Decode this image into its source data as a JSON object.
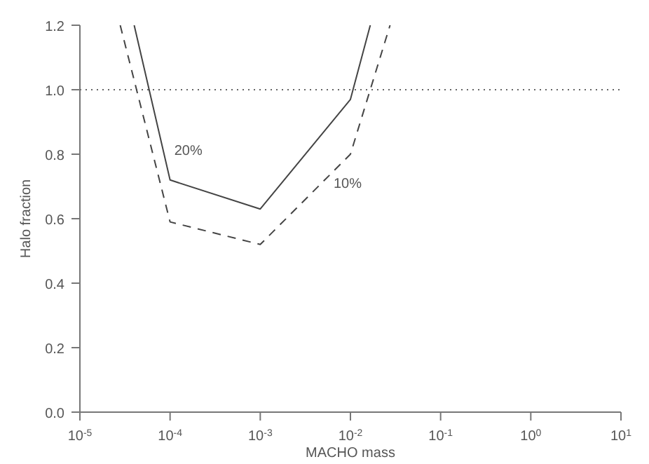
{
  "chart_data": {
    "type": "line",
    "xlabel": "MACHO mass",
    "ylabel": "Halo fraction",
    "log": "x",
    "xlim": [
      1e-05,
      10
    ],
    "xticks": [
      {
        "value": 1e-05,
        "label": "10$^{-5}$"
      },
      {
        "value": 0.0001,
        "label": "10$^{-4}$"
      },
      {
        "value": 0.001,
        "label": "10$^{-3}$"
      },
      {
        "value": 0.01,
        "label": "10$^{-2}$"
      },
      {
        "value": 0.1,
        "label": "10$^{-1}$"
      },
      {
        "value": 1,
        "label": "10$^{0}$"
      },
      {
        "value": 10,
        "label": "10$^{1}$"
      }
    ],
    "ylim": [
      0,
      1.2
    ],
    "yticks": [
      {
        "value": 0,
        "label": "0.0"
      },
      {
        "value": 0.2,
        "label": "0.2"
      },
      {
        "value": 0.4,
        "label": "0.4"
      },
      {
        "value": 0.6,
        "label": "0.6"
      },
      {
        "value": 0.8,
        "label": "0.8"
      },
      {
        "value": 1,
        "label": "1.0"
      },
      {
        "value": 1.2,
        "label": "1.2"
      }
    ],
    "grid": false,
    "marker": "none",
    "ref_lines": [
      {
        "axis": "y",
        "value": 1,
        "label": null,
        "color": "#666666",
        "line_style": "dotted"
      }
    ],
    "series": [
      {
        "name": "20%",
        "color": "#444444",
        "line_style": "solid",
        "x": [
          4e-05,
          0.0001,
          0.001,
          0.01,
          0.0166
        ],
        "values": [
          1.2,
          0.72,
          0.63,
          0.97,
          1.2
        ]
      },
      {
        "name": "10%",
        "color": "#444444",
        "line_style": "dashed",
        "x": [
          2.8e-05,
          0.0001,
          0.001,
          0.01,
          0.0275
        ],
        "values": [
          1.2,
          0.59,
          0.52,
          0.8,
          1.2
        ]
      }
    ]
  }
}
